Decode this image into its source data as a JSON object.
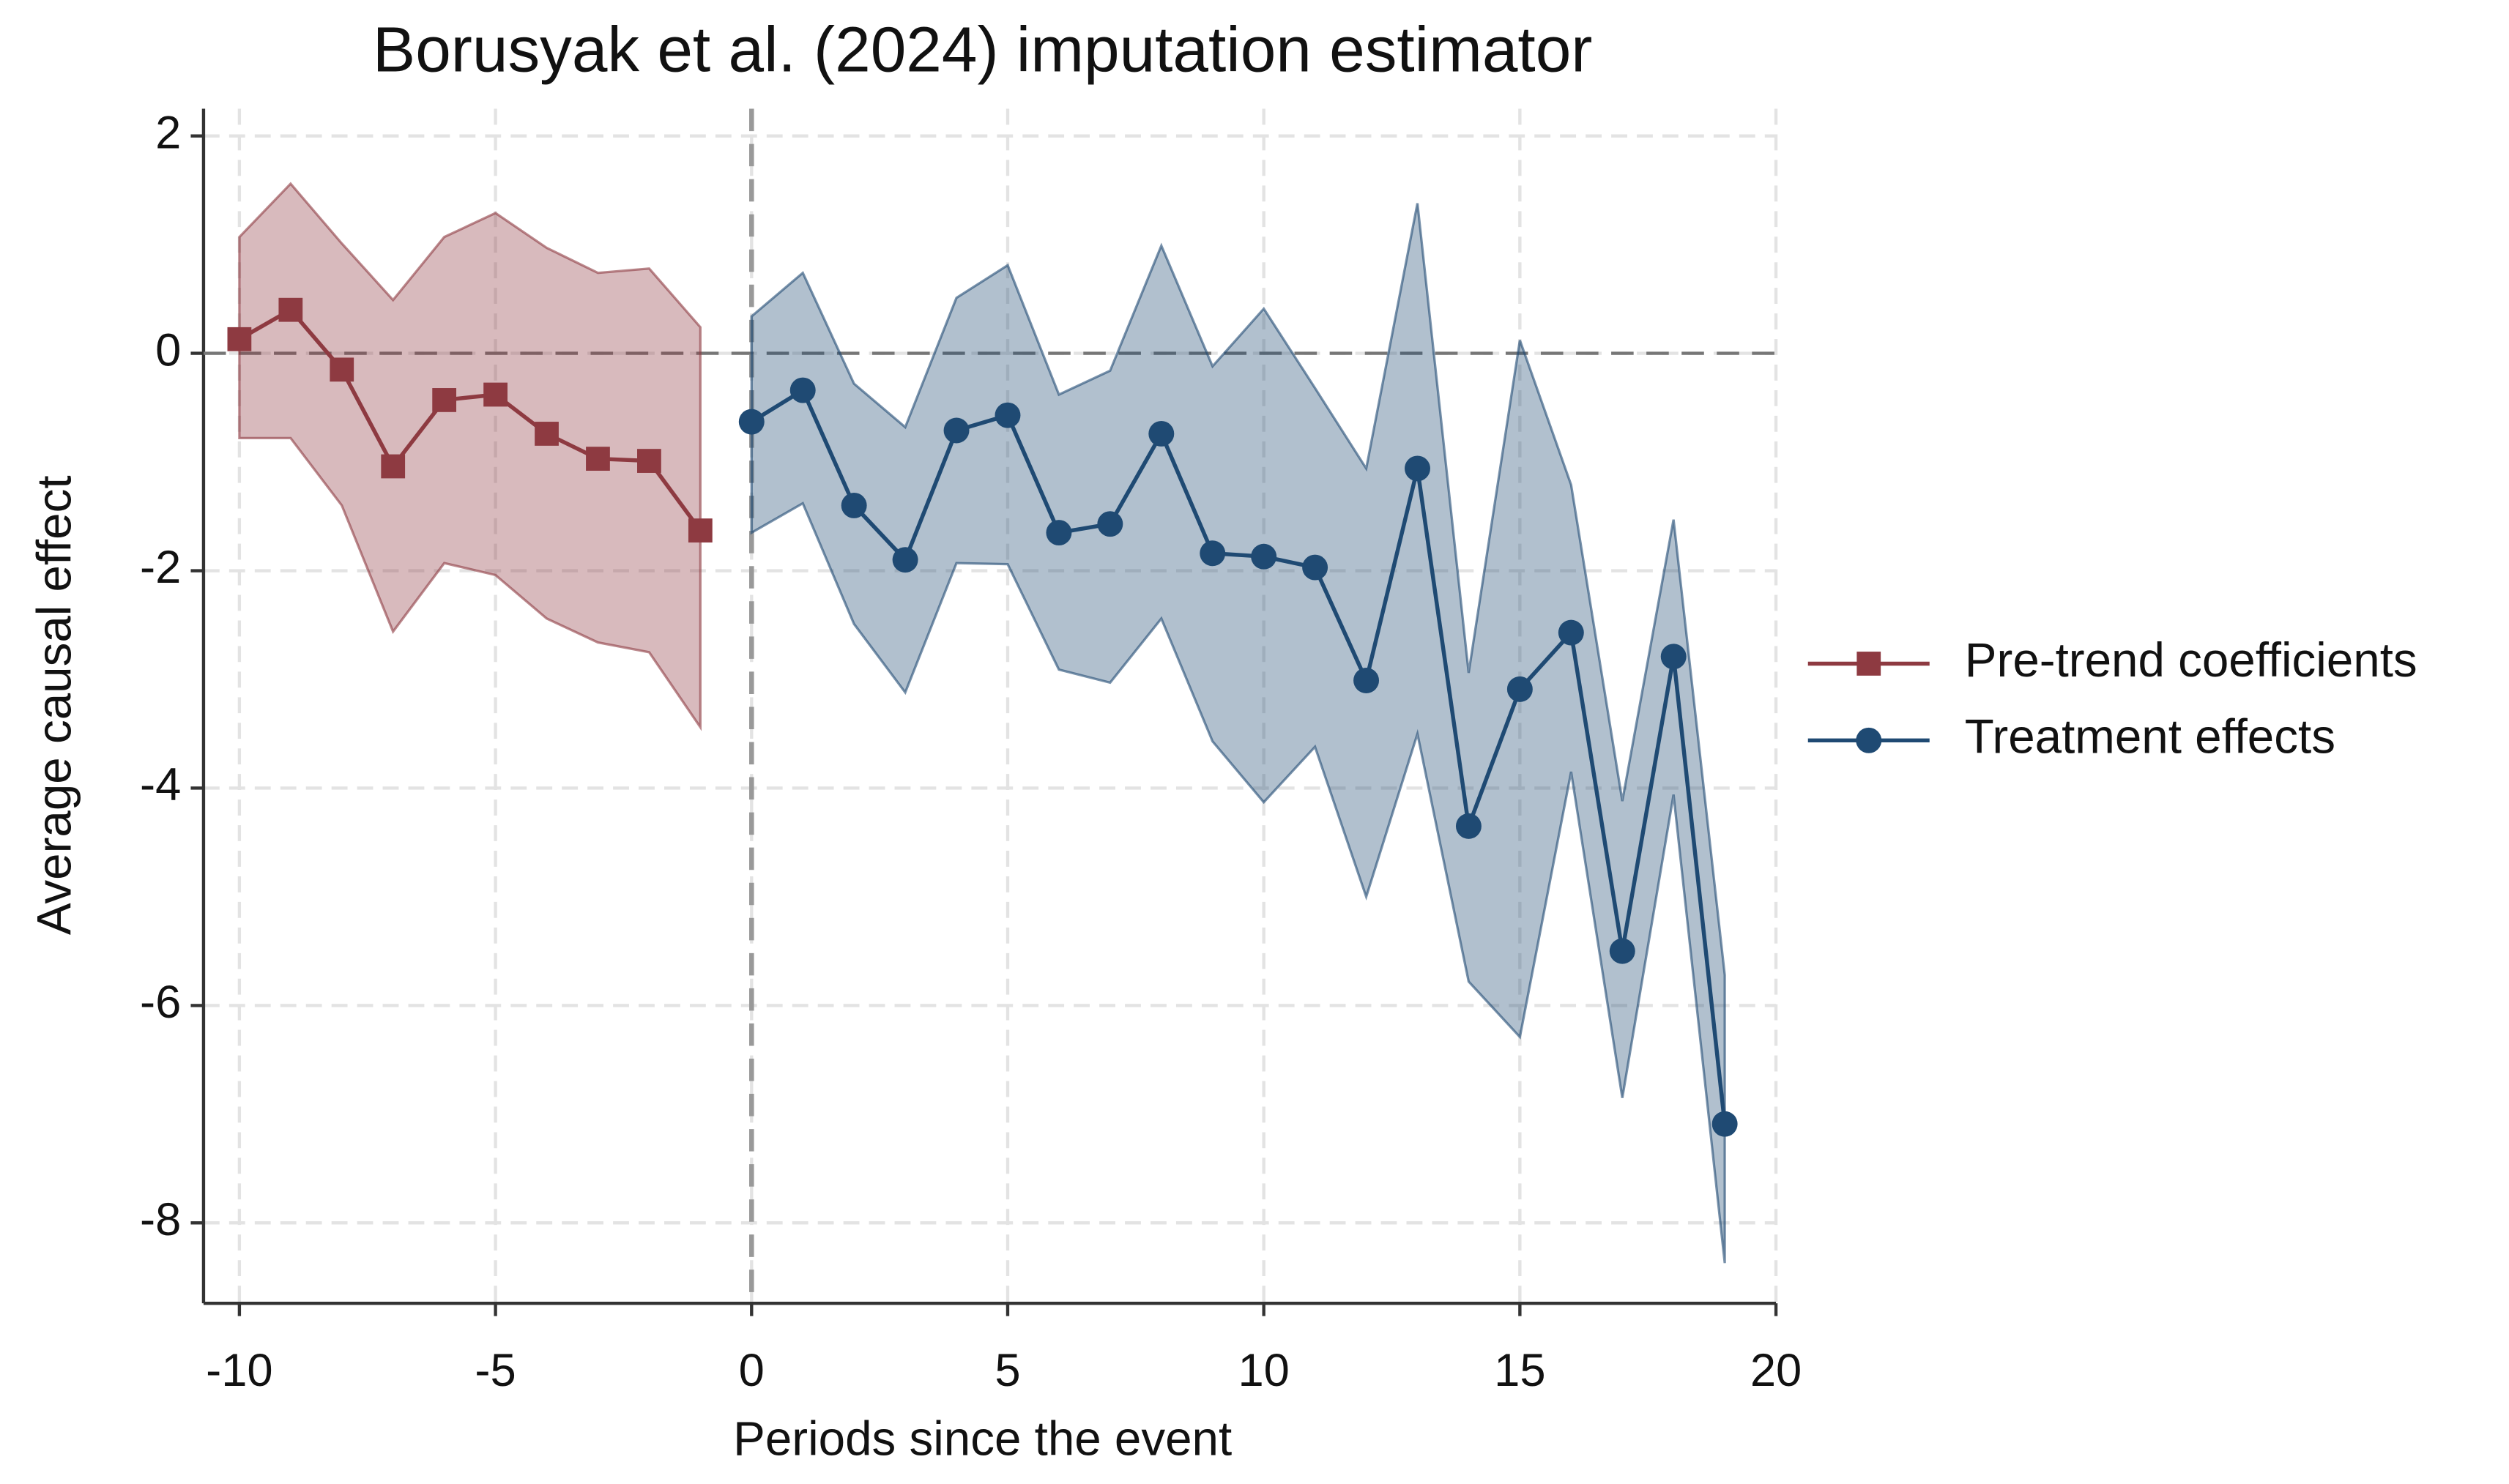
{
  "chart_data": {
    "type": "line",
    "title": "Borusyak et al. (2024) imputation estimator",
    "x_label": "Periods since the event",
    "y_label": "Average causal effect",
    "xlim": [
      -10.7,
      20
    ],
    "ylim": [
      -8.74,
      2.25
    ],
    "xticks": [
      -10,
      -5,
      0,
      5,
      10,
      15,
      20
    ],
    "yticks": [
      -8,
      -6,
      -4,
      -2,
      0,
      2
    ],
    "grid": true,
    "xline": 0,
    "yline": 0,
    "legend": "right",
    "band_opacity": 0.35,
    "series": [
      {
        "name": "Pre-trend coefficients",
        "color": "#8e3a41",
        "marker": "square",
        "x": [
          -10,
          -9,
          -8,
          -7,
          -6,
          -5,
          -4,
          -3,
          -2,
          -1
        ],
        "values": [
          0.13,
          0.4,
          -0.15,
          -1.04,
          -0.43,
          -0.38,
          -0.74,
          -0.97,
          -0.99,
          -1.63
        ],
        "upper": [
          1.07,
          1.56,
          1.01,
          0.49,
          1.07,
          1.29,
          0.97,
          0.74,
          0.78,
          0.24
        ],
        "lower": [
          -0.78,
          -0.78,
          -1.4,
          -2.56,
          -1.93,
          -2.04,
          -2.44,
          -2.66,
          -2.75,
          -3.44
        ]
      },
      {
        "name": "Treatment effects",
        "color": "#1f4a73",
        "marker": "circle",
        "x": [
          0,
          1,
          2,
          3,
          4,
          5,
          6,
          7,
          8,
          9,
          10,
          11,
          12,
          13,
          14,
          15,
          16,
          17,
          18,
          19
        ],
        "values": [
          -0.63,
          -0.34,
          -1.4,
          -1.9,
          -0.71,
          -0.57,
          -1.65,
          -1.57,
          -0.74,
          -1.84,
          -1.87,
          -1.97,
          -3.01,
          -1.06,
          -4.35,
          -3.09,
          -2.57,
          -5.5,
          -2.79,
          -7.09
        ],
        "upper": [
          0.34,
          0.74,
          -0.28,
          -0.68,
          0.51,
          0.81,
          -0.38,
          -0.16,
          0.99,
          -0.12,
          0.41,
          -0.32,
          -1.06,
          1.38,
          -2.94,
          0.12,
          -1.21,
          -4.12,
          -1.53,
          -5.72
        ],
        "lower": [
          -1.65,
          -1.38,
          -2.49,
          -3.12,
          -1.93,
          -1.94,
          -2.91,
          -3.03,
          -2.44,
          -3.57,
          -4.13,
          -3.62,
          -5.0,
          -3.5,
          -5.78,
          -6.29,
          -3.85,
          -6.85,
          -4.06,
          -8.37
        ]
      }
    ]
  }
}
